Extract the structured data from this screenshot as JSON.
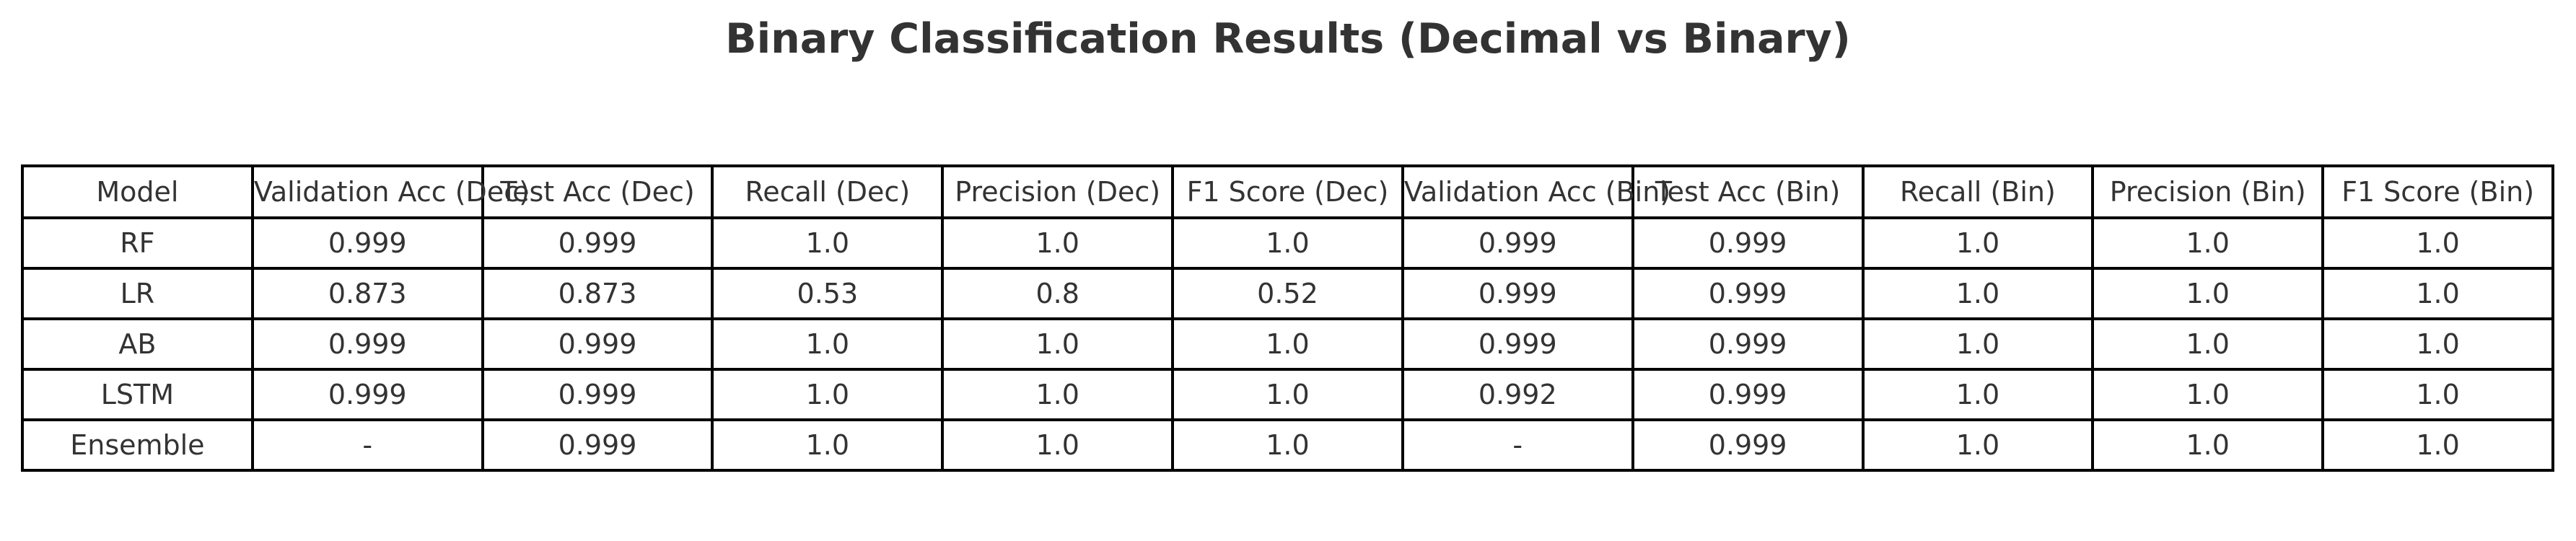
{
  "chart_data": {
    "type": "table",
    "title": "Binary Classification Results (Decimal vs Binary)",
    "columns": [
      "Model",
      "Validation Acc (Dec)",
      "Test Acc (Dec)",
      "Recall (Dec)",
      "Precision (Dec)",
      "F1 Score (Dec)",
      "Validation Acc (Bin)",
      "Test Acc (Bin)",
      "Recall (Bin)",
      "Precision (Bin)",
      "F1 Score (Bin)"
    ],
    "rows": [
      [
        "RF",
        "0.999",
        "0.999",
        "1.0",
        "1.0",
        "1.0",
        "0.999",
        "0.999",
        "1.0",
        "1.0",
        "1.0"
      ],
      [
        "LR",
        "0.873",
        "0.873",
        "0.53",
        "0.8",
        "0.52",
        "0.999",
        "0.999",
        "1.0",
        "1.0",
        "1.0"
      ],
      [
        "AB",
        "0.999",
        "0.999",
        "1.0",
        "1.0",
        "1.0",
        "0.999",
        "0.999",
        "1.0",
        "1.0",
        "1.0"
      ],
      [
        "LSTM",
        "0.999",
        "0.999",
        "1.0",
        "1.0",
        "1.0",
        "0.992",
        "0.999",
        "1.0",
        "1.0",
        "1.0"
      ],
      [
        "Ensemble",
        "-",
        "0.999",
        "1.0",
        "1.0",
        "1.0",
        "-",
        "0.999",
        "1.0",
        "1.0",
        "1.0"
      ]
    ]
  }
}
